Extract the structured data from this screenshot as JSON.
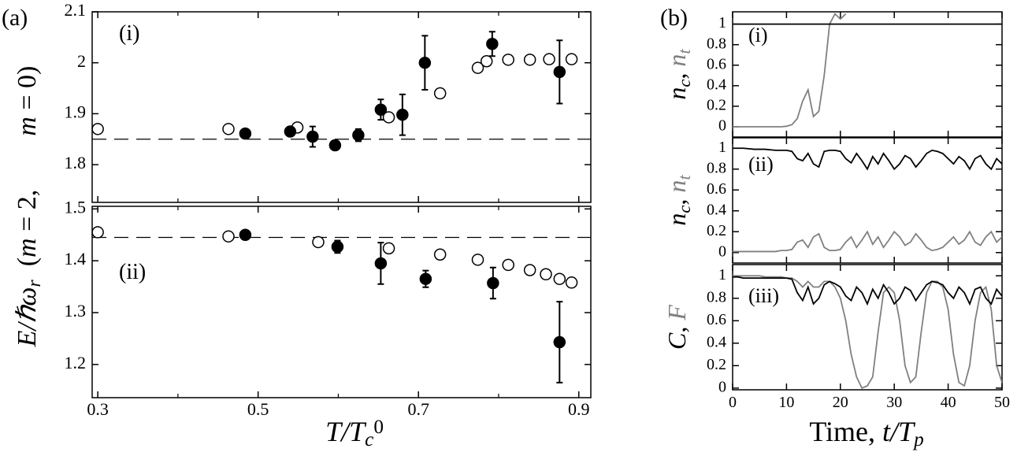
{
  "figure": {
    "panel_a": "(a)",
    "panel_b": "(b)",
    "a_ylabel": [
      {
        "text": "E/ℏω",
        "italic": true
      },
      {
        "text": "r",
        "italic": true,
        "script": "sub"
      },
      {
        "text": "  ("
      },
      {
        "text": "m",
        "italic": true
      },
      {
        "text": " = 2,        "
      },
      {
        "text": "m",
        "italic": true
      },
      {
        "text": " = 0)"
      }
    ],
    "a_xlabel": [
      {
        "text": "T/T",
        "italic": true
      },
      {
        "text": "c",
        "italic": true,
        "script": "sub"
      },
      {
        "text": "0",
        "script": "sup"
      }
    ],
    "b_xlabel": [
      {
        "text": "Time, "
      },
      {
        "text": "t/T",
        "italic": true
      },
      {
        "text": "p",
        "italic": true,
        "script": "sub"
      }
    ]
  },
  "chart_data": [
    {
      "type": "scatter",
      "label": "(i)",
      "xlim": [
        0.293,
        0.915
      ],
      "xticks": [
        0.3,
        0.5,
        0.7,
        0.9
      ],
      "xminor": [
        0.4,
        0.6,
        0.8
      ],
      "xtick_labels": false,
      "ylim": [
        1.726,
        2.1
      ],
      "yticks": [
        1.8,
        1.9,
        2,
        2.1
      ],
      "hline": 1.85,
      "series": [
        {
          "marker": "open",
          "x": [
            0.3,
            0.463,
            0.549,
            0.663,
            0.727,
            0.774,
            0.785,
            0.812,
            0.839,
            0.863,
            0.891
          ],
          "y": [
            1.87,
            1.87,
            1.873,
            1.893,
            1.94,
            1.99,
            2.003,
            2.006,
            2.006,
            2.007,
            2.007
          ]
        },
        {
          "marker": "filled",
          "x": [
            0.484,
            0.54,
            0.568,
            0.596,
            0.625,
            0.653,
            0.68,
            0.708,
            0.792,
            0.876
          ],
          "y": [
            1.861,
            1.865,
            1.855,
            1.838,
            1.858,
            1.908,
            1.898,
            2.0,
            2.037,
            1.982
          ],
          "yerr": [
            null,
            null,
            0.02,
            null,
            0.012,
            0.02,
            0.04,
            0.053,
            0.024,
            0.062
          ]
        }
      ]
    },
    {
      "type": "scatter",
      "label": "(ii)",
      "xlim": [
        0.293,
        0.915
      ],
      "xticks": [
        0.3,
        0.5,
        0.7,
        0.9
      ],
      "xminor": [
        0.4,
        0.6,
        0.8
      ],
      "ylim": [
        1.136,
        1.505
      ],
      "yticks": [
        1.2,
        1.3,
        1.4,
        1.5
      ],
      "hline": 1.445,
      "series": [
        {
          "marker": "open",
          "x": [
            0.3,
            0.463,
            0.575,
            0.663,
            0.727,
            0.774,
            0.812,
            0.839,
            0.859,
            0.876,
            0.891
          ],
          "y": [
            1.455,
            1.447,
            1.436,
            1.424,
            1.412,
            1.402,
            1.392,
            1.382,
            1.374,
            1.365,
            1.358
          ]
        },
        {
          "marker": "filled",
          "x": [
            0.484,
            0.599,
            0.653,
            0.709,
            0.793,
            0.876
          ],
          "y": [
            1.45,
            1.427,
            1.395,
            1.365,
            1.357,
            1.243
          ],
          "yerr": [
            null,
            0.012,
            0.04,
            0.016,
            0.03,
            0.078
          ]
        }
      ]
    },
    {
      "type": "line",
      "label": "(i)",
      "xlim": [
        0,
        50
      ],
      "xticks": [
        0,
        10,
        20,
        30,
        40,
        50
      ],
      "xtick_labels": false,
      "ylim": [
        -0.1,
        1.12
      ],
      "yticks": [
        0,
        0.2,
        0.4,
        0.6,
        0.8,
        1
      ],
      "ylabel": [
        {
          "text": "n",
          "italic": true
        },
        {
          "text": "c",
          "italic": true,
          "script": "sub"
        },
        {
          "text": ", "
        },
        {
          "text": "n",
          "italic": true,
          "color": "#808080"
        },
        {
          "text": "t",
          "italic": true,
          "script": "sub",
          "color": "#808080"
        }
      ],
      "x": [
        0,
        1,
        2,
        3,
        4,
        5,
        6,
        7,
        8,
        9,
        10,
        11,
        12,
        13,
        14,
        15,
        16,
        17,
        18,
        19,
        20,
        21,
        22,
        23,
        24,
        25,
        26,
        27,
        28,
        29,
        30,
        31,
        32,
        33,
        34,
        35,
        36,
        37,
        38,
        39,
        40,
        41,
        42,
        43,
        44,
        45,
        46,
        47,
        48,
        49,
        50
      ],
      "series": [
        {
          "color": "#808080",
          "values": [
            0,
            0,
            0,
            0,
            0,
            0,
            0,
            0,
            0,
            0,
            0.005,
            0.02,
            0.08,
            0.25,
            0.36,
            0.1,
            0.15,
            0.5,
            1.0,
            1.1,
            1.05,
            1.1,
            null,
            null,
            null,
            null,
            null,
            null,
            null,
            null,
            null,
            null,
            null,
            null,
            null,
            null,
            null,
            null,
            null,
            null,
            null,
            null,
            null,
            null,
            null,
            null,
            null,
            null,
            null,
            null,
            null
          ]
        },
        {
          "color": "#000000",
          "values": [
            1,
            1,
            1,
            1,
            1,
            1,
            1,
            1,
            1,
            1,
            1,
            1,
            1,
            1,
            1,
            1,
            1,
            1,
            1,
            1,
            1,
            1,
            1,
            1,
            1,
            1,
            1,
            1,
            1,
            1,
            1,
            1,
            1,
            1,
            1,
            1,
            1,
            1,
            1,
            1,
            1,
            1,
            1,
            1,
            1,
            1,
            1,
            1,
            1,
            1,
            1
          ]
        }
      ]
    },
    {
      "type": "line",
      "label": "(ii)",
      "xlim": [
        0,
        50
      ],
      "xticks": [
        0,
        10,
        20,
        30,
        40,
        50
      ],
      "xtick_labels": false,
      "ylim": [
        -0.1,
        1.1
      ],
      "yticks": [
        0,
        0.2,
        0.4,
        0.6,
        0.8,
        1
      ],
      "ylabel": [
        {
          "text": "n",
          "italic": true
        },
        {
          "text": "c",
          "italic": true,
          "script": "sub"
        },
        {
          "text": ", "
        },
        {
          "text": "n",
          "italic": true,
          "color": "#808080"
        },
        {
          "text": "t",
          "italic": true,
          "script": "sub",
          "color": "#808080"
        }
      ],
      "x": [
        0,
        1,
        2,
        3,
        4,
        5,
        6,
        7,
        8,
        9,
        10,
        11,
        12,
        13,
        14,
        15,
        16,
        17,
        18,
        19,
        20,
        21,
        22,
        23,
        24,
        25,
        26,
        27,
        28,
        29,
        30,
        31,
        32,
        33,
        34,
        35,
        36,
        37,
        38,
        39,
        40,
        41,
        42,
        43,
        44,
        45,
        46,
        47,
        48,
        49,
        50
      ],
      "series": [
        {
          "color": "#808080",
          "values": [
            0.01,
            0.01,
            0.01,
            0.01,
            0.01,
            0.01,
            0.01,
            0.01,
            0.01,
            0.02,
            0.02,
            0.03,
            0.1,
            0.12,
            0.05,
            0.15,
            0.18,
            0.05,
            0.02,
            0.02,
            0.03,
            0.1,
            0.15,
            0.05,
            0.12,
            0.2,
            0.08,
            0.15,
            0.05,
            0.12,
            0.2,
            0.15,
            0.07,
            0.1,
            0.18,
            0.12,
            0.05,
            0.02,
            0.03,
            0.05,
            0.1,
            0.15,
            0.08,
            0.12,
            0.2,
            0.1,
            0.07,
            0.15,
            0.2,
            0.1,
            0.15
          ]
        },
        {
          "color": "#000000",
          "values": [
            1,
            1,
            1,
            0.995,
            0.99,
            0.99,
            0.99,
            0.985,
            0.98,
            0.98,
            0.98,
            0.97,
            0.9,
            0.88,
            0.95,
            0.85,
            0.82,
            0.97,
            0.98,
            0.98,
            0.97,
            0.9,
            0.86,
            0.95,
            0.88,
            0.8,
            0.92,
            0.85,
            0.95,
            0.88,
            0.8,
            0.85,
            0.93,
            0.9,
            0.82,
            0.88,
            0.95,
            0.98,
            0.97,
            0.95,
            0.9,
            0.85,
            0.92,
            0.88,
            0.8,
            0.9,
            0.93,
            0.85,
            0.8,
            0.9,
            0.85
          ]
        }
      ]
    },
    {
      "type": "line",
      "label": "(iii)",
      "xlim": [
        0,
        50
      ],
      "xticks": [
        0,
        10,
        20,
        30,
        40,
        50
      ],
      "ylim": [
        -0.015,
        1.1
      ],
      "yticks": [
        0,
        0.2,
        0.4,
        0.6,
        0.8,
        1
      ],
      "ylabel": [
        {
          "text": "C",
          "italic": true
        },
        {
          "text": ", "
        },
        {
          "text": "F",
          "italic": true,
          "color": "#808080"
        }
      ],
      "x": [
        0,
        1,
        2,
        3,
        4,
        5,
        6,
        7,
        8,
        9,
        10,
        11,
        12,
        13,
        14,
        15,
        16,
        17,
        18,
        19,
        20,
        21,
        22,
        23,
        24,
        25,
        26,
        27,
        28,
        29,
        30,
        31,
        32,
        33,
        34,
        35,
        36,
        37,
        38,
        39,
        40,
        41,
        42,
        43,
        44,
        45,
        46,
        47,
        48,
        49,
        50
      ],
      "series": [
        {
          "color": "#808080",
          "values": [
            1,
            1,
            1,
            1,
            1,
            1,
            0.99,
            0.99,
            0.99,
            0.99,
            0.98,
            0.98,
            0.95,
            0.9,
            0.95,
            0.9,
            0.9,
            0.95,
            0.95,
            0.9,
            0.8,
            0.6,
            0.3,
            0.1,
            0,
            0.02,
            0.1,
            0.5,
            0.85,
            0.9,
            0.85,
            0.6,
            0.2,
            0.05,
            0.1,
            0.5,
            0.85,
            0.95,
            0.95,
            0.9,
            0.7,
            0.3,
            0.05,
            0.02,
            0.2,
            0.6,
            0.85,
            0.9,
            0.7,
            0.2,
            0.05
          ]
        },
        {
          "color": "#000000",
          "values": [
            0.99,
            0.99,
            0.98,
            0.98,
            0.98,
            0.98,
            0.98,
            0.98,
            0.98,
            0.98,
            0.98,
            0.97,
            0.85,
            0.78,
            0.9,
            0.75,
            0.8,
            0.92,
            0.95,
            0.93,
            0.9,
            0.82,
            0.78,
            0.9,
            0.85,
            0.75,
            0.88,
            0.8,
            0.92,
            0.85,
            0.75,
            0.8,
            0.9,
            0.87,
            0.78,
            0.85,
            0.92,
            0.95,
            0.94,
            0.92,
            0.85,
            0.8,
            0.9,
            0.85,
            0.75,
            0.88,
            0.9,
            0.8,
            0.75,
            0.88,
            0.82
          ]
        }
      ]
    }
  ]
}
